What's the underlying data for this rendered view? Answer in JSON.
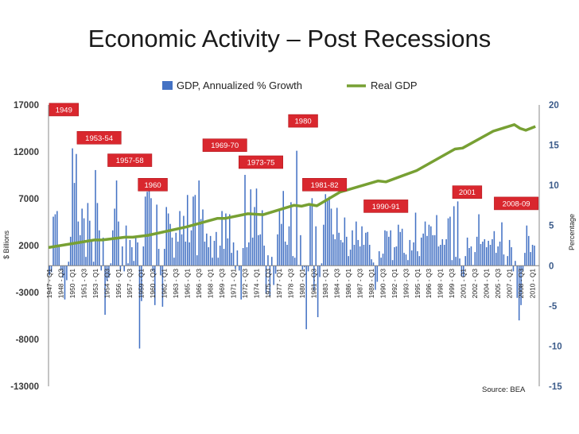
{
  "chart_data": {
    "type": "bar+line",
    "title": "Economic Activity – Post Recessions",
    "source": "Source: BEA",
    "legend": {
      "position": "top",
      "bar_label": "GDP, Annualized % Growth",
      "line_label": "Real GDP"
    },
    "left_axis": {
      "label": "$ Billions",
      "min": -13000,
      "max": 17000,
      "ticks": [
        "17000",
        "12000",
        "7000",
        "2000",
        "-3000",
        "-8000",
        "-13000"
      ],
      "tick_values": [
        17000,
        12000,
        7000,
        2000,
        -3000,
        -8000,
        -13000
      ]
    },
    "right_axis": {
      "label": "Percentage",
      "min": -15,
      "max": 20,
      "ticks": [
        "20",
        "15",
        "10",
        "5",
        "0",
        "-5",
        "-10",
        "-15"
      ],
      "tick_values": [
        20,
        15,
        10,
        5,
        0,
        -5,
        -10,
        -15
      ]
    },
    "category_labels": [
      "1947 - Q1",
      "1948 - Q3",
      "1950 - Q1",
      "1951 - Q3",
      "1953 - Q1",
      "1954 - Q3",
      "1956 - Q1",
      "1957 - Q3",
      "1959 - Q1",
      "1960 - Q3",
      "1962 - Q1",
      "1963 - Q3",
      "1965 - Q1",
      "1966 - Q3",
      "1968 - Q1",
      "1969 - Q3",
      "1971 - Q1",
      "1972 - Q3",
      "1974 - Q1",
      "1975 - Q3",
      "1977 - Q1",
      "1978 - Q3",
      "1980 - Q1",
      "1981 - Q3",
      "1983 - Q1",
      "1984 - Q3",
      "1986 - Q1",
      "1987 - Q3",
      "1989 - Q1",
      "1990 - Q3",
      "1992 - Q1",
      "1993 - Q3",
      "1995 - Q1",
      "1996 - Q3",
      "1998 - Q1",
      "1999 - Q3",
      "2001 - Q1",
      "2002 - Q3",
      "2004 - Q1",
      "2005 - Q3",
      "2007 - Q1",
      "2008 - Q3",
      "2010 - Q1"
    ],
    "recessions": [
      {
        "label": "1949",
        "year": 1949.0,
        "y": 16500
      },
      {
        "label": "1953-54",
        "year": 1953.6,
        "y": 13500
      },
      {
        "label": "1957-58",
        "year": 1957.6,
        "y": 11100
      },
      {
        "label": "1960",
        "year": 1960.6,
        "y": 8500
      },
      {
        "label": "1969-70",
        "year": 1970.0,
        "y": 12700
      },
      {
        "label": "1973-75",
        "year": 1974.7,
        "y": 10900
      },
      {
        "label": "1980",
        "year": 1980.2,
        "y": 15300
      },
      {
        "label": "1981-82",
        "year": 1983.0,
        "y": 8500
      },
      {
        "label": "1990-91",
        "year": 1991.0,
        "y": 6200
      },
      {
        "label": "2001",
        "year": 2001.6,
        "y": 7700
      },
      {
        "label": "2008-09",
        "year": 2008.0,
        "y": 6500
      }
    ],
    "real_gdp": {
      "years": [
        1947,
        1950,
        1953,
        1954,
        1957,
        1958,
        1960,
        1965,
        1969,
        1970,
        1973,
        1975,
        1979,
        1980,
        1981,
        1982,
        1985,
        1990,
        1991,
        1995,
        2000,
        2001,
        2005,
        2007.75,
        2008.5,
        2009.25,
        2010.5
      ],
      "values": [
        1800,
        2200,
        2600,
        2600,
        2900,
        2900,
        3100,
        4000,
        4900,
        4900,
        5400,
        5300,
        6300,
        6200,
        6400,
        6250,
        7700,
        8900,
        8800,
        10000,
        12300,
        12400,
        14200,
        14900,
        14500,
        14300,
        14700
      ]
    },
    "gdp_growth": {
      "start_year": 1947,
      "quarters_per_year": 4,
      "values": [
        -1.2,
        -0.8,
        6.1,
        6.4,
        6.8,
        2.3,
        -0.5,
        -1.5,
        -4.2,
        -1.8,
        0.5,
        3.6,
        14.6,
        10.3,
        13.9,
        5.5,
        3.8,
        7.1,
        5.9,
        1.1,
        7.8,
        5.6,
        3.2,
        0.5,
        11.9,
        7.8,
        4.4,
        -0.6,
        3.5,
        -6.1,
        -1.9,
        -1.5,
        0.3,
        4.4,
        7.1,
        10.6,
        5.5,
        -0.5,
        2.4,
        -0.7,
        5.0,
        0.3,
        3.2,
        2.3,
        0.6,
        3.5,
        2.9,
        -10.3,
        -4.4,
        2.4,
        8.6,
        9.2,
        9.8,
        8.4,
        -0.7,
        -4.9,
        7.6,
        2.1,
        -1.2,
        -5.1,
        2.1,
        7.3,
        6.5,
        5.2,
        3.5,
        1.0,
        4.1,
        3.0,
        6.8,
        3.9,
        6.2,
        3.0,
        8.8,
        2.9,
        4.4,
        8.6,
        8.8,
        1.3,
        10.6,
        5.8,
        7.0,
        3.0,
        4.0,
        2.3,
        3.7,
        1.0,
        3.1,
        4.2,
        1.0,
        2.5,
        6.8,
        2.1,
        6.5,
        3.4,
        6.4,
        1.6,
        2.9,
        -0.4,
        1.9,
        -0.6,
        -4.2,
        2.2,
        11.3,
        2.3,
        2.9,
        9.5,
        3.5,
        7.3,
        9.6,
        3.8,
        3.9,
        6.9,
        2.5,
        -3.5,
        1.3,
        -3.8,
        1.1,
        -2.4,
        -1.0,
        3.9,
        6.8,
        5.2,
        9.3,
        3.0,
        2.6,
        4.9,
        7.9,
        1.2,
        1.0,
        14.3,
        0.1,
        3.8,
        -0.5,
        -0.2,
        -7.9,
        -0.7,
        7.6,
        8.4,
        -3.1,
        4.9,
        -6.4,
        -1.4,
        0.3,
        5.1,
        8.9,
        8.1,
        8.6,
        7.1,
        3.9,
        3.3,
        7.2,
        4.1,
        3.2,
        2.9,
        6.0,
        3.6,
        1.2,
        2.0,
        4.4,
        2.6,
        5.5,
        3.2,
        2.4,
        4.9,
        2.6,
        4.1,
        4.2,
        2.6,
        0.8,
        0.4,
        -3.0,
        -2.0,
        1.8,
        1.0,
        1.5,
        4.4,
        4.3,
        3.6,
        4.4,
        0.7,
        2.3,
        2.4,
        5.1,
        4.2,
        4.6,
        1.6,
        1.4,
        0.7,
        3.2,
        1.9,
        2.9,
        6.6,
        1.8,
        1.2,
        3.5,
        4.0,
        5.5,
        3.7,
        5.1,
        4.9,
        3.8,
        3.8,
        6.3,
        2.4,
        2.6,
        3.3,
        2.6,
        3.3,
        5.9,
        6.1,
        0.7,
        7.4,
        1.1,
        8.0,
        0.9,
        -1.3,
        -1.4,
        1.2,
        3.5,
        2.2,
        2.4,
        0.1,
        1.7,
        3.6,
        6.4,
        2.7,
        3.0,
        3.3,
        2.3,
        3.1,
        2.6,
        3.3,
        4.3,
        1.6,
        2.4,
        3.0,
        5.4,
        1.4,
        0.1,
        1.2,
        3.2,
        2.3,
        -0.7,
        0.6,
        -4.0,
        -6.8,
        -4.9,
        -0.7,
        1.6,
        5.0,
        3.7,
        1.7,
        2.6,
        2.5
      ]
    }
  }
}
